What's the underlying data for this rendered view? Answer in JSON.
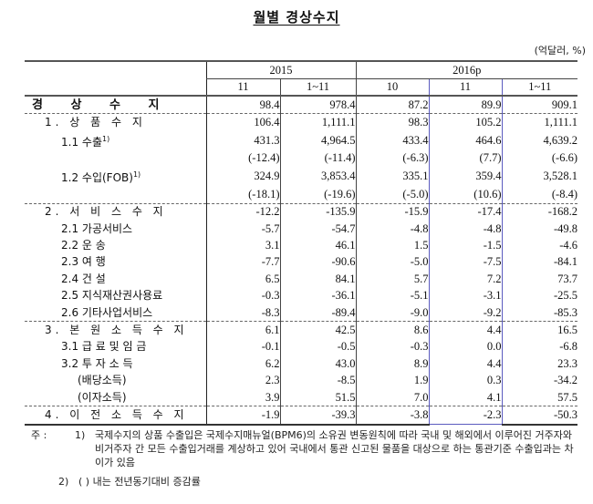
{
  "title": "월별 경상수지",
  "unit": "(억달러, %)",
  "header": {
    "years": [
      {
        "label": "2015",
        "span": 2
      },
      {
        "label": "2016p",
        "span": 3
      }
    ],
    "periods": [
      "11",
      "1~11",
      "10",
      "11",
      "1~11"
    ],
    "highlight_column_index": 3,
    "highlight_color": "#5b5bbf"
  },
  "rows": [
    {
      "label": "경 상 수 지",
      "level": 0,
      "values": [
        "98.4",
        "978.4",
        "87.2",
        "89.9",
        "909.1"
      ]
    },
    {
      "label": "1. 상 품 수 지",
      "level": 1,
      "values": [
        "106.4",
        "1,111.1",
        "98.3",
        "105.2",
        "1,111.1"
      ]
    },
    {
      "label": "1.1 수출",
      "sup": "1)",
      "level": 2,
      "values": [
        "431.3",
        "4,964.5",
        "433.4",
        "464.6",
        "4,639.2"
      ]
    },
    {
      "label": "",
      "level": 2,
      "values": [
        "(-12.4)",
        "(-11.4)",
        "(-6.3)",
        "(7.7)",
        "(-6.6)"
      ]
    },
    {
      "label": "1.2 수입(FOB)",
      "sup": "1)",
      "level": 2,
      "values": [
        "324.9",
        "3,853.4",
        "335.1",
        "359.4",
        "3,528.1"
      ]
    },
    {
      "label": "",
      "level": 2,
      "values": [
        "(-18.1)",
        "(-19.6)",
        "(-5.0)",
        "(10.6)",
        "(-8.4)"
      ]
    },
    {
      "label": "2. 서 비 스 수 지",
      "level": 1,
      "values": [
        "-12.2",
        "-135.9",
        "-15.9",
        "-17.4",
        "-168.2"
      ]
    },
    {
      "label": "2.1 가공서비스",
      "level": 2,
      "values": [
        "-5.7",
        "-54.7",
        "-4.8",
        "-4.8",
        "-49.8"
      ]
    },
    {
      "label": "2.2 운        송",
      "level": 2,
      "values": [
        "3.1",
        "46.1",
        "1.5",
        "-1.5",
        "-4.6"
      ]
    },
    {
      "label": "2.3 여        행",
      "level": 2,
      "values": [
        "-7.7",
        "-90.6",
        "-5.0",
        "-7.5",
        "-84.1"
      ]
    },
    {
      "label": "2.4 건        설",
      "level": 2,
      "values": [
        "6.5",
        "84.1",
        "5.7",
        "7.2",
        "73.7"
      ]
    },
    {
      "label": "2.5 지식재산권사용료",
      "level": 2,
      "values": [
        "-0.3",
        "-36.1",
        "-5.1",
        "-3.1",
        "-25.5"
      ]
    },
    {
      "label": "2.6 기타사업서비스",
      "level": 2,
      "values": [
        "-8.3",
        "-89.4",
        "-9.0",
        "-9.2",
        "-85.3"
      ]
    },
    {
      "label": "3. 본 원 소 득 수 지",
      "level": 1,
      "values": [
        "6.1",
        "42.5",
        "8.6",
        "4.4",
        "16.5"
      ]
    },
    {
      "label": "3.1 급 료 및 임 금",
      "level": 2,
      "values": [
        "-0.1",
        "-0.5",
        "-0.3",
        "0.0",
        "-6.8"
      ]
    },
    {
      "label": "3.2 투   자   소   득",
      "level": 2,
      "values": [
        "6.2",
        "43.0",
        "8.9",
        "4.4",
        "23.3"
      ]
    },
    {
      "label": "(배당소득)",
      "level": 3,
      "values": [
        "2.3",
        "-8.5",
        "1.9",
        "0.3",
        "-34.2"
      ]
    },
    {
      "label": "(이자소득)",
      "level": 3,
      "values": [
        "3.9",
        "51.5",
        "7.0",
        "4.1",
        "57.5"
      ]
    },
    {
      "label": "4. 이 전 소 득 수 지",
      "level": 1,
      "values": [
        "-1.9",
        "-39.3",
        "-3.8",
        "-2.3",
        "-50.3"
      ]
    }
  ],
  "notes": {
    "prefix": "주 :",
    "items": [
      {
        "num": "1)",
        "text": "국제수지의 상품 수출입은 국제수지매뉴얼(BPM6)의 소유권 변동원칙에 따라 국내 및 해외에서 이루어진 거주자와 비거주자 간 모든 수출입거래를 계상하고 있어 국내에서 통관 신고된 물품을 대상으로 하는 통관기준 수출입과는 차이가 있음"
      },
      {
        "num": "2)",
        "text": "(  ) 내는 전년동기대비 증감률"
      }
    ]
  }
}
